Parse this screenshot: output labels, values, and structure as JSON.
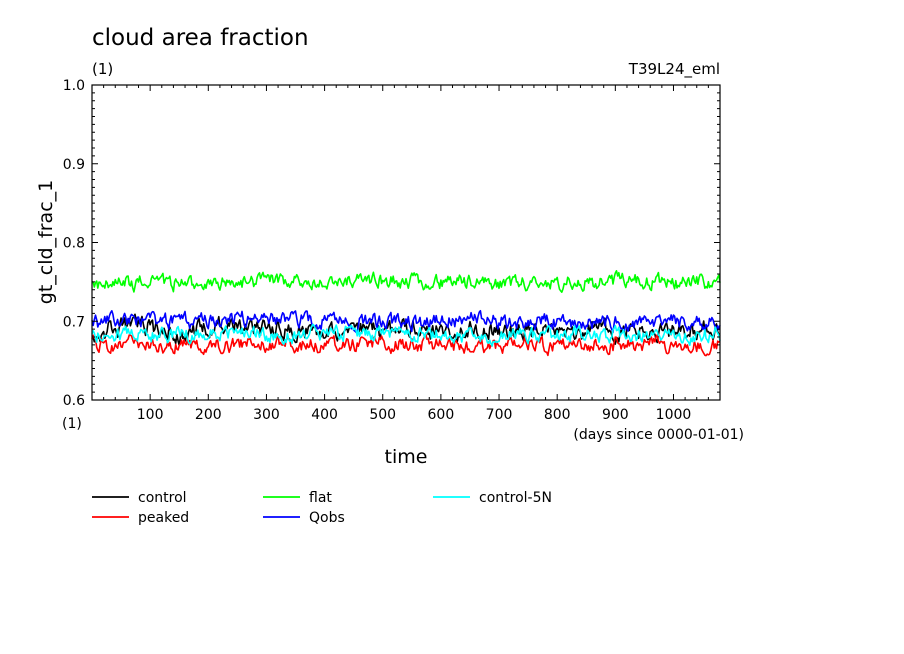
{
  "chart_data": {
    "type": "line",
    "title": "cloud area fraction",
    "title_unit": "(1)",
    "run_label": "T39L24_eml",
    "xlabel": "time",
    "x_unit": "(days since 0000-01-01)",
    "ylabel": "gt_cld_frac_1",
    "y_unit": "(1)",
    "xlim": [
      0,
      1080
    ],
    "ylim": [
      0.6,
      1.0
    ],
    "x_ticks": [
      "100",
      "200",
      "300",
      "400",
      "500",
      "600",
      "700",
      "800",
      "900",
      "1000"
    ],
    "y_ticks": [
      "0.6",
      "0.7",
      "0.8",
      "0.9",
      "1.0"
    ],
    "grid": false,
    "legend_position": "bottom",
    "series": [
      {
        "name": "control",
        "color": "#000000",
        "x": [
          0,
          60,
          120,
          150,
          180,
          240,
          300,
          360,
          420,
          480,
          540,
          600,
          660,
          720,
          780,
          840,
          900,
          960,
          1020,
          1080
        ],
        "values": [
          0.685,
          0.695,
          0.69,
          0.68,
          0.69,
          0.695,
          0.69,
          0.688,
          0.69,
          0.687,
          0.689,
          0.69,
          0.688,
          0.689,
          0.688,
          0.687,
          0.689,
          0.688,
          0.687,
          0.69
        ]
      },
      {
        "name": "peaked",
        "color": "#ff0000",
        "x": [
          0,
          60,
          120,
          180,
          240,
          300,
          360,
          420,
          480,
          540,
          600,
          660,
          720,
          780,
          840,
          900,
          960,
          1020,
          1080
        ],
        "values": [
          0.67,
          0.672,
          0.668,
          0.67,
          0.671,
          0.672,
          0.67,
          0.671,
          0.672,
          0.67,
          0.671,
          0.668,
          0.67,
          0.669,
          0.671,
          0.67,
          0.671,
          0.669,
          0.67
        ]
      },
      {
        "name": "flat",
        "color": "#00ff00",
        "x": [
          0,
          60,
          120,
          180,
          240,
          300,
          360,
          420,
          480,
          540,
          600,
          660,
          720,
          780,
          840,
          900,
          960,
          1020,
          1080
        ],
        "values": [
          0.745,
          0.748,
          0.75,
          0.746,
          0.749,
          0.752,
          0.75,
          0.749,
          0.751,
          0.75,
          0.749,
          0.75,
          0.748,
          0.749,
          0.75,
          0.751,
          0.749,
          0.748,
          0.75
        ]
      },
      {
        "name": "Qobs",
        "color": "#0000ff",
        "x": [
          0,
          60,
          120,
          180,
          240,
          300,
          360,
          420,
          480,
          540,
          600,
          660,
          720,
          780,
          840,
          900,
          960,
          1020,
          1080
        ],
        "values": [
          0.698,
          0.702,
          0.7,
          0.7,
          0.703,
          0.705,
          0.702,
          0.699,
          0.698,
          0.699,
          0.701,
          0.702,
          0.699,
          0.7,
          0.698,
          0.699,
          0.7,
          0.699,
          0.698
        ]
      },
      {
        "name": "control-5N",
        "color": "#00ffff",
        "x": [
          0,
          60,
          120,
          180,
          240,
          300,
          360,
          420,
          480,
          540,
          600,
          660,
          720,
          780,
          840,
          900,
          960,
          1020,
          1080
        ],
        "values": [
          0.683,
          0.685,
          0.684,
          0.683,
          0.685,
          0.684,
          0.683,
          0.685,
          0.684,
          0.683,
          0.682,
          0.68,
          0.681,
          0.683,
          0.682,
          0.683,
          0.682,
          0.681,
          0.683
        ]
      }
    ]
  }
}
